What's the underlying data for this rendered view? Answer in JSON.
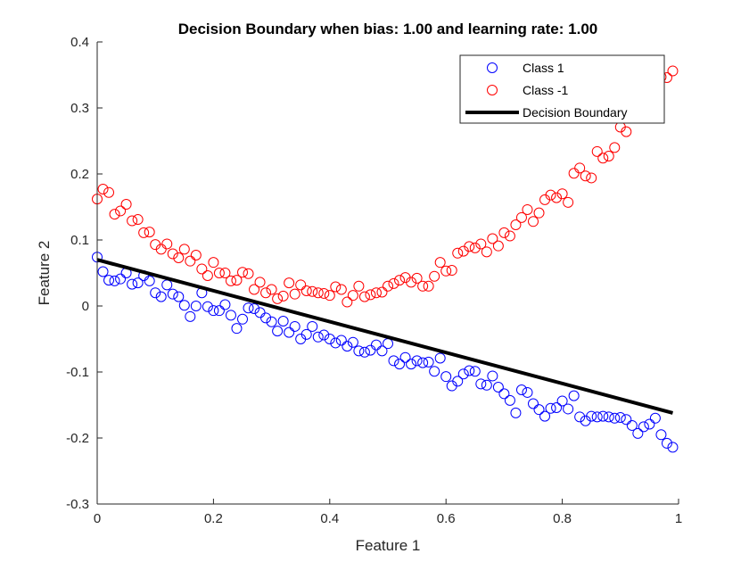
{
  "chart_data": {
    "type": "scatter",
    "title": "Decision Boundary when bias: 1.00 and learning rate: 1.00",
    "xlabel": "Feature 1",
    "ylabel": "Feature 2",
    "xlim": [
      0,
      1
    ],
    "ylim": [
      -0.3,
      0.4
    ],
    "xticks": [
      0,
      0.2,
      0.4,
      0.6,
      0.8,
      1
    ],
    "xtick_labels": [
      "0",
      "0.2",
      "0.4",
      "0.6",
      "0.8",
      "1"
    ],
    "yticks": [
      -0.3,
      -0.2,
      -0.1,
      0,
      0.1,
      0.2,
      0.3,
      0.4
    ],
    "ytick_labels": [
      "-0.3",
      "-0.2",
      "-0.1",
      "0",
      "0.1",
      "0.2",
      "0.3",
      "0.4"
    ],
    "grid": false,
    "legend_position": "top-right",
    "legend": [
      "Class 1",
      "Class -1",
      "Decision Boundary"
    ],
    "series": [
      {
        "name": "Class 1",
        "kind": "scatter",
        "marker": "circle-open",
        "color": "#0000ff",
        "x": [
          0,
          0.01,
          0.02,
          0.03,
          0.04,
          0.05,
          0.06,
          0.07,
          0.08,
          0.09,
          0.1,
          0.11,
          0.12,
          0.13,
          0.14,
          0.15,
          0.16,
          0.17,
          0.18,
          0.19,
          0.2,
          0.21,
          0.22,
          0.23,
          0.24,
          0.25,
          0.26,
          0.27,
          0.28,
          0.29,
          0.3,
          0.31,
          0.32,
          0.33,
          0.34,
          0.35,
          0.36,
          0.37,
          0.38,
          0.39,
          0.4,
          0.41,
          0.42,
          0.43,
          0.44,
          0.45,
          0.46,
          0.47,
          0.48,
          0.49,
          0.5,
          0.51,
          0.52,
          0.53,
          0.54,
          0.55,
          0.56,
          0.57,
          0.58,
          0.59,
          0.6,
          0.61,
          0.62,
          0.63,
          0.64,
          0.65,
          0.66,
          0.67,
          0.68,
          0.69,
          0.7,
          0.71,
          0.72,
          0.73,
          0.74,
          0.75,
          0.76,
          0.77,
          0.78,
          0.79,
          0.8,
          0.81,
          0.82,
          0.83,
          0.84,
          0.85,
          0.86,
          0.87,
          0.88,
          0.89,
          0.9,
          0.91,
          0.92,
          0.93,
          0.94,
          0.95,
          0.96,
          0.97,
          0.98,
          0.99
        ],
        "y": [
          0.074,
          0.052,
          0.039,
          0.038,
          0.041,
          0.05,
          0.033,
          0.035,
          0.046,
          0.038,
          0.02,
          0.014,
          0.032,
          0.018,
          0.014,
          0.001,
          -0.016,
          0.0,
          0.02,
          -0.001,
          -0.007,
          -0.007,
          0.002,
          -0.014,
          -0.034,
          -0.02,
          -0.003,
          -0.004,
          -0.01,
          -0.018,
          -0.024,
          -0.038,
          -0.023,
          -0.04,
          -0.031,
          -0.05,
          -0.043,
          -0.031,
          -0.047,
          -0.044,
          -0.05,
          -0.056,
          -0.052,
          -0.061,
          -0.055,
          -0.068,
          -0.07,
          -0.067,
          -0.059,
          -0.068,
          -0.057,
          -0.083,
          -0.088,
          -0.078,
          -0.088,
          -0.083,
          -0.086,
          -0.085,
          -0.099,
          -0.079,
          -0.107,
          -0.121,
          -0.114,
          -0.103,
          -0.098,
          -0.099,
          -0.118,
          -0.12,
          -0.106,
          -0.123,
          -0.133,
          -0.143,
          -0.162,
          -0.127,
          -0.131,
          -0.148,
          -0.157,
          -0.167,
          -0.155,
          -0.154,
          -0.144,
          -0.156,
          -0.136,
          -0.168,
          -0.174,
          -0.167,
          -0.168,
          -0.167,
          -0.168,
          -0.17,
          -0.169,
          -0.172,
          -0.181,
          -0.193,
          -0.183,
          -0.179,
          -0.17,
          -0.195,
          -0.208,
          -0.214
        ]
      },
      {
        "name": "Class -1",
        "kind": "scatter",
        "marker": "circle-open",
        "color": "#ff0000",
        "x": [
          0,
          0.01,
          0.02,
          0.03,
          0.04,
          0.05,
          0.06,
          0.07,
          0.08,
          0.09,
          0.1,
          0.11,
          0.12,
          0.13,
          0.14,
          0.15,
          0.16,
          0.17,
          0.18,
          0.19,
          0.2,
          0.21,
          0.22,
          0.23,
          0.24,
          0.25,
          0.26,
          0.27,
          0.28,
          0.29,
          0.3,
          0.31,
          0.32,
          0.33,
          0.34,
          0.35,
          0.36,
          0.37,
          0.38,
          0.39,
          0.4,
          0.41,
          0.42,
          0.43,
          0.44,
          0.45,
          0.46,
          0.47,
          0.48,
          0.49,
          0.5,
          0.51,
          0.52,
          0.53,
          0.54,
          0.55,
          0.56,
          0.57,
          0.58,
          0.59,
          0.6,
          0.61,
          0.62,
          0.63,
          0.64,
          0.65,
          0.66,
          0.67,
          0.68,
          0.69,
          0.7,
          0.71,
          0.72,
          0.73,
          0.74,
          0.75,
          0.76,
          0.77,
          0.78,
          0.79,
          0.8,
          0.81,
          0.82,
          0.83,
          0.84,
          0.85,
          0.86,
          0.87,
          0.88,
          0.89,
          0.9,
          0.91,
          0.92,
          0.93,
          0.94,
          0.95,
          0.96,
          0.97,
          0.98,
          0.99
        ],
        "y": [
          0.162,
          0.177,
          0.172,
          0.139,
          0.144,
          0.154,
          0.129,
          0.131,
          0.111,
          0.112,
          0.093,
          0.086,
          0.094,
          0.079,
          0.073,
          0.086,
          0.068,
          0.077,
          0.056,
          0.046,
          0.066,
          0.05,
          0.05,
          0.038,
          0.039,
          0.051,
          0.049,
          0.025,
          0.036,
          0.02,
          0.025,
          0.011,
          0.015,
          0.035,
          0.018,
          0.032,
          0.023,
          0.022,
          0.02,
          0.019,
          0.016,
          0.029,
          0.025,
          0.006,
          0.016,
          0.03,
          0.014,
          0.017,
          0.02,
          0.021,
          0.03,
          0.034,
          0.039,
          0.043,
          0.036,
          0.042,
          0.03,
          0.03,
          0.045,
          0.066,
          0.053,
          0.054,
          0.08,
          0.083,
          0.09,
          0.088,
          0.094,
          0.082,
          0.102,
          0.091,
          0.111,
          0.106,
          0.123,
          0.134,
          0.146,
          0.128,
          0.141,
          0.161,
          0.168,
          0.164,
          0.17,
          0.157,
          0.201,
          0.209,
          0.197,
          0.194,
          0.234,
          0.224,
          0.227,
          0.24,
          0.271,
          0.264,
          0.289,
          0.296,
          0.311,
          0.32,
          0.33,
          0.347,
          0.346,
          0.356
        ]
      },
      {
        "name": "Decision Boundary",
        "kind": "line",
        "color": "#000000",
        "x": [
          0,
          0.99
        ],
        "y": [
          0.07,
          -0.162
        ]
      }
    ]
  }
}
